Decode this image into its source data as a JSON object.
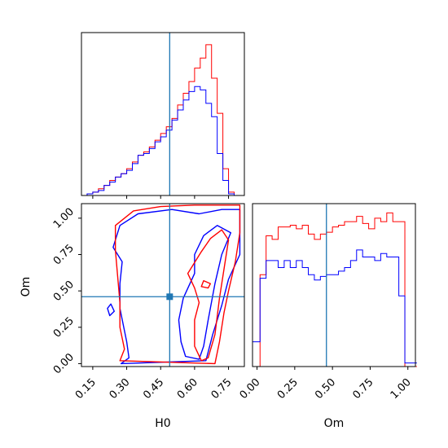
{
  "chart_data": {
    "type": "corner",
    "parameters": [
      "H0",
      "Om"
    ],
    "colors": {
      "series_a": "#ff0000",
      "series_b": "#0000ff",
      "truth": "#1f77b4"
    },
    "truth": {
      "H0": 0.49,
      "Om": 0.46
    },
    "panels": [
      {
        "id": "h0-marginal",
        "type": "histogram",
        "xlim": [
          0.1,
          0.82
        ],
        "bin_edges": [
          0.1,
          0.125,
          0.15,
          0.175,
          0.2,
          0.225,
          0.25,
          0.275,
          0.3,
          0.325,
          0.35,
          0.375,
          0.4,
          0.425,
          0.45,
          0.475,
          0.5,
          0.525,
          0.55,
          0.575,
          0.6,
          0.625,
          0.65,
          0.675,
          0.7,
          0.725,
          0.75,
          0.775,
          0.8
        ],
        "series": [
          {
            "color": "red",
            "counts": [
              0,
              1,
              2,
              4,
              6,
              9,
              11,
              13,
              16,
              20,
              24,
              26,
              29,
              33,
              37,
              41,
              46,
              54,
              61,
              68,
              76,
              82,
              90,
              70,
              49,
              16,
              2,
              0
            ]
          },
          {
            "color": "blue",
            "counts": [
              0,
              1,
              2,
              3,
              6,
              8,
              11,
              13,
              15,
              19,
              24,
              25,
              28,
              32,
              35,
              39,
              45,
              51,
              57,
              62,
              65,
              63,
              55,
              47,
              25,
              9,
              1,
              0
            ]
          }
        ]
      },
      {
        "id": "h0-om-joint",
        "type": "contour",
        "xlim": [
          0.1,
          0.82
        ],
        "ylim": [
          -0.02,
          1.1
        ],
        "contours": [
          {
            "color": "blue",
            "points": [
              [
                0.275,
                0.0
              ],
              [
                0.31,
                0.04
              ],
              [
                0.3,
                0.15
              ],
              [
                0.27,
                0.38
              ],
              [
                0.27,
                0.55
              ],
              [
                0.28,
                0.7
              ],
              [
                0.24,
                0.8
              ],
              [
                0.27,
                0.95
              ],
              [
                0.35,
                1.03
              ],
              [
                0.5,
                1.06
              ],
              [
                0.62,
                1.03
              ],
              [
                0.72,
                1.06
              ],
              [
                0.8,
                1.06
              ],
              [
                0.8,
                0.95
              ],
              [
                0.8,
                0.75
              ],
              [
                0.75,
                0.58
              ],
              [
                0.72,
                0.4
              ],
              [
                0.68,
                0.2
              ],
              [
                0.65,
                0.02
              ]
            ]
          },
          {
            "color": "red",
            "points": [
              [
                0.27,
                0.02
              ],
              [
                0.29,
                0.1
              ],
              [
                0.27,
                0.25
              ],
              [
                0.27,
                0.42
              ],
              [
                0.26,
                0.6
              ],
              [
                0.25,
                0.78
              ],
              [
                0.25,
                0.95
              ],
              [
                0.33,
                1.05
              ],
              [
                0.45,
                1.08
              ],
              [
                0.6,
                1.09
              ],
              [
                0.72,
                1.09
              ],
              [
                0.8,
                1.09
              ],
              [
                0.8,
                0.9
              ],
              [
                0.78,
                0.7
              ],
              [
                0.75,
                0.5
              ],
              [
                0.73,
                0.35
              ],
              [
                0.71,
                0.15
              ],
              [
                0.69,
                0.0
              ]
            ]
          },
          {
            "color": "blue",
            "points": [
              [
                0.55,
                0.45
              ],
              [
                0.53,
                0.3
              ],
              [
                0.54,
                0.15
              ],
              [
                0.56,
                0.05
              ],
              [
                0.62,
                0.03
              ],
              [
                0.64,
                0.12
              ],
              [
                0.66,
                0.3
              ],
              [
                0.69,
                0.55
              ],
              [
                0.72,
                0.75
              ],
              [
                0.76,
                0.9
              ],
              [
                0.7,
                0.95
              ],
              [
                0.64,
                0.88
              ],
              [
                0.6,
                0.75
              ],
              [
                0.6,
                0.62
              ]
            ]
          },
          {
            "color": "red",
            "points": [
              [
                0.57,
                0.62
              ],
              [
                0.6,
                0.52
              ],
              [
                0.62,
                0.42
              ],
              [
                0.6,
                0.3
              ],
              [
                0.6,
                0.12
              ],
              [
                0.63,
                0.02
              ],
              [
                0.66,
                0.04
              ],
              [
                0.69,
                0.2
              ],
              [
                0.71,
                0.45
              ],
              [
                0.73,
                0.65
              ],
              [
                0.75,
                0.85
              ],
              [
                0.72,
                0.92
              ],
              [
                0.67,
                0.86
              ],
              [
                0.63,
                0.77
              ]
            ]
          },
          {
            "color": "blue",
            "points": [
              [
                0.215,
                0.38
              ],
              [
                0.225,
                0.33
              ],
              [
                0.245,
                0.36
              ],
              [
                0.23,
                0.41
              ]
            ]
          },
          {
            "color": "red",
            "points": [
              [
                0.63,
                0.53
              ],
              [
                0.66,
                0.52
              ],
              [
                0.67,
                0.55
              ],
              [
                0.64,
                0.57
              ]
            ]
          }
        ]
      },
      {
        "id": "om-marginal",
        "type": "histogram",
        "xlim": [
          -0.03,
          1.05
        ],
        "bin_edges": [
          -0.03,
          0.02,
          0.06,
          0.1,
          0.14,
          0.18,
          0.22,
          0.26,
          0.3,
          0.34,
          0.38,
          0.42,
          0.46,
          0.5,
          0.54,
          0.58,
          0.62,
          0.66,
          0.7,
          0.74,
          0.78,
          0.82,
          0.86,
          0.9,
          0.94,
          0.98,
          1.02,
          1.06
        ],
        "series": [
          {
            "color": "red",
            "counts": [
              0,
              52,
              74,
              72,
              79,
              79,
              80,
              78,
              80,
              75,
              72,
              75,
              76,
              79,
              80,
              82,
              82,
              85,
              81,
              78,
              84,
              82,
              87,
              82,
              82,
              0,
              0
            ]
          },
          {
            "color": "blue",
            "counts": [
              14,
              50,
              60,
              60,
              56,
              60,
              56,
              60,
              56,
              52,
              49,
              51,
              52,
              52,
              54,
              56,
              60,
              66,
              62,
              62,
              60,
              64,
              62,
              62,
              40,
              2,
              2
            ]
          }
        ]
      }
    ],
    "xlabels": [
      "H0",
      "Om"
    ],
    "ylabels": [
      "",
      "Om"
    ],
    "h0_ticks": [
      {
        "value": 0.15,
        "label": "0.15"
      },
      {
        "value": 0.3,
        "label": "0.30"
      },
      {
        "value": 0.45,
        "label": "0.45"
      },
      {
        "value": 0.6,
        "label": "0.60"
      },
      {
        "value": 0.75,
        "label": "0.75"
      }
    ],
    "om_ticks": [
      {
        "value": 0.0,
        "label": "0.00"
      },
      {
        "value": 0.25,
        "label": "0.25"
      },
      {
        "value": 0.5,
        "label": "0.50"
      },
      {
        "value": 0.75,
        "label": "0.75"
      },
      {
        "value": 1.0,
        "label": "1.00"
      }
    ]
  }
}
